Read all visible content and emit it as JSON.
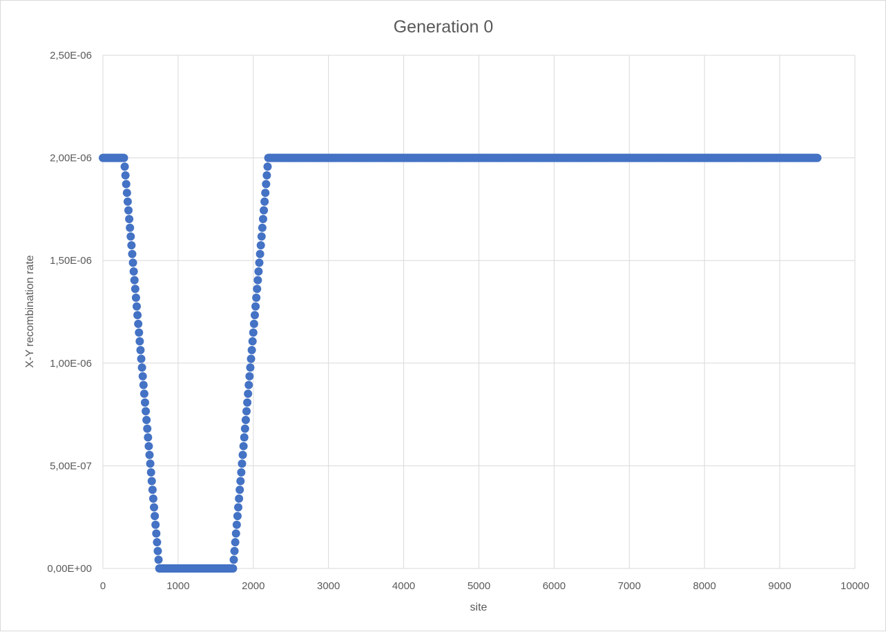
{
  "chart_data": {
    "type": "scatter",
    "title": "Generation 0",
    "xlabel": "site",
    "ylabel": "X-Y recombination rate",
    "xlim": [
      0,
      10000
    ],
    "ylim": [
      0,
      2.5e-06
    ],
    "x_ticks": [
      {
        "value": 0,
        "label": "0"
      },
      {
        "value": 1000,
        "label": "1000"
      },
      {
        "value": 2000,
        "label": "2000"
      },
      {
        "value": 3000,
        "label": "3000"
      },
      {
        "value": 4000,
        "label": "4000"
      },
      {
        "value": 5000,
        "label": "5000"
      },
      {
        "value": 6000,
        "label": "6000"
      },
      {
        "value": 7000,
        "label": "7000"
      },
      {
        "value": 8000,
        "label": "8000"
      },
      {
        "value": 9000,
        "label": "9000"
      },
      {
        "value": 10000,
        "label": "10000"
      }
    ],
    "y_ticks": [
      {
        "value": 0,
        "label": "0,00E+00"
      },
      {
        "value": 5e-07,
        "label": "5,00E-07"
      },
      {
        "value": 1e-06,
        "label": "1,00E-06"
      },
      {
        "value": 1.5e-06,
        "label": "1,50E-06"
      },
      {
        "value": 2e-06,
        "label": "2,00E-06"
      },
      {
        "value": 2.5e-06,
        "label": "2,50E-06"
      }
    ],
    "grid": true,
    "legend": "none",
    "series": [
      {
        "marker_color": "#4472c4",
        "profile": "piecewise-linear",
        "x_range": [
          0,
          9500
        ],
        "x_step": 10,
        "breakpoints": [
          {
            "x": 0,
            "y": 2e-06
          },
          {
            "x": 280,
            "y": 2e-06
          },
          {
            "x": 750,
            "y": 0
          },
          {
            "x": 1730,
            "y": 0
          },
          {
            "x": 2200,
            "y": 2e-06
          },
          {
            "x": 9500,
            "y": 2e-06
          }
        ]
      }
    ]
  }
}
